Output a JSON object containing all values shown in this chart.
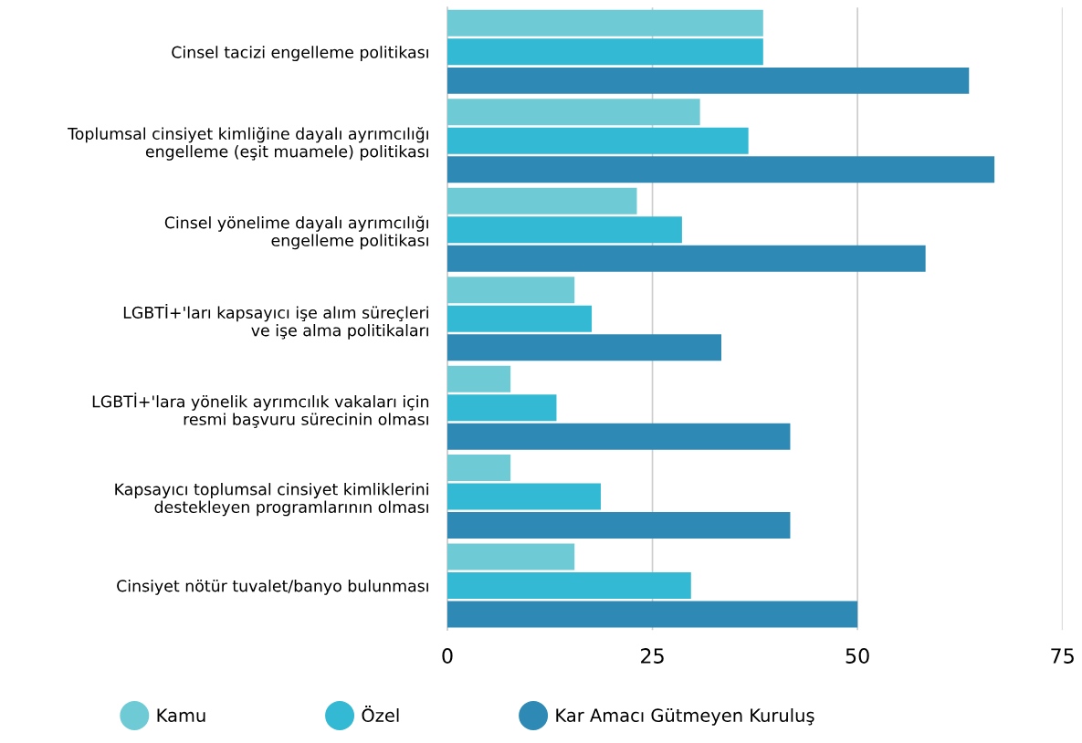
{
  "chart_data": {
    "type": "bar",
    "orientation": "horizontal",
    "categories": [
      "Cinsel tacizi engelleme politikası",
      "Toplumsal cinsiyet kimliğine dayalı ayrımcılığı\nengelleme (eşit muamele) politikası",
      "Cinsel yönelime dayalı ayrımcılığı\nengelleme politikası",
      "LGBTİ+'ları kapsayıcı işe alım süreçleri\nve işe alma politikaları",
      "LGBTİ+'lara yönelik ayrımcılık vakaları için\nresmi başvuru sürecinin olması",
      "Kapsayıcı toplumsal cinsiyet kimliklerini\ndestekleyen programlarının olması",
      "Cinsiyet nötür tuvalet/banyo bulunması"
    ],
    "series": [
      {
        "name": "Kamu",
        "color": "#6ecbd5",
        "values": [
          38.5,
          30.8,
          23.1,
          15.5,
          7.7,
          7.7,
          15.5
        ]
      },
      {
        "name": "Özel",
        "color": "#33b9d3",
        "values": [
          38.5,
          36.7,
          28.6,
          17.6,
          13.3,
          18.7,
          29.7
        ]
      },
      {
        "name": "Kar Amacı Gütmeyen Kuruluş",
        "color": "#2e8ab5",
        "values": [
          63.6,
          66.7,
          58.3,
          33.4,
          41.8,
          41.8,
          50.0
        ]
      }
    ],
    "xlim": [
      0,
      75
    ],
    "xticks": [
      0,
      25,
      50,
      75
    ],
    "grid": "x",
    "legend": "bottom"
  }
}
